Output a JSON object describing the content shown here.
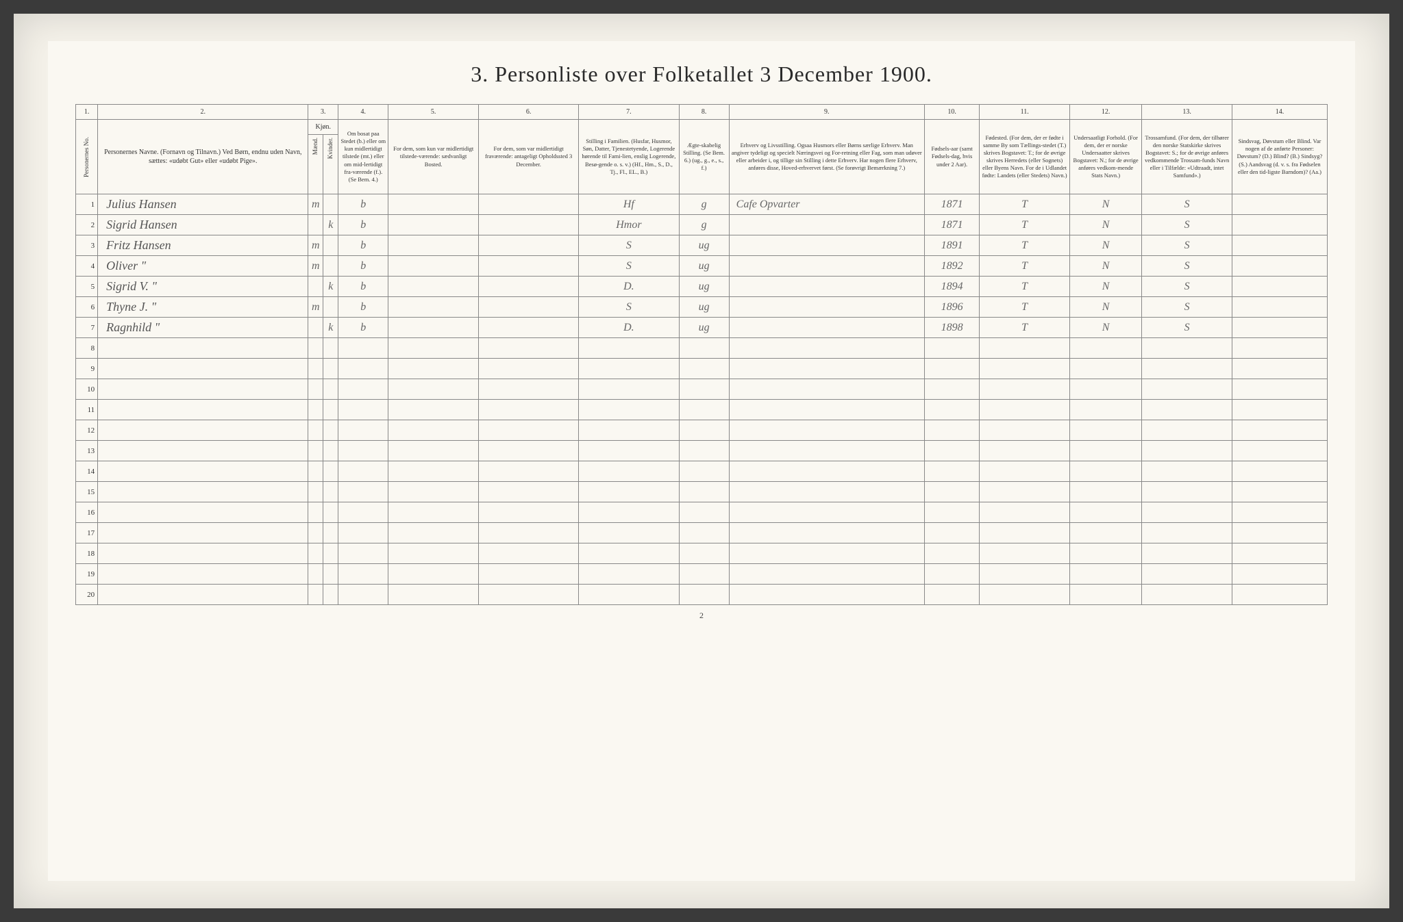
{
  "doc": {
    "title": "3. Personliste over Folketallet 3 December 1900.",
    "footer_page": "2",
    "background": "#faf8f2",
    "border_color": "#888",
    "text_color": "#333",
    "cursive_color": "#666"
  },
  "columns": {
    "numbers": [
      "1.",
      "2.",
      "3.",
      "4.",
      "5.",
      "6.",
      "7.",
      "8.",
      "9.",
      "10.",
      "11.",
      "12.",
      "13.",
      "14."
    ],
    "headers": {
      "c1": "Personernes No.",
      "c2": "Personernes Navne.\n(Fornavn og Tilnavn.)\nVed Børn, endnu uden Navn, sættes: «udøbt Gut» eller «udøbt Pige».",
      "c3": "Kjøn.",
      "c3a": "Mænd.",
      "c3b": "Kvinder.",
      "c4": "Om bosat paa Stedet (b.) eller om kun midlertidigt tilstede (mt.) eller om mid-lertidigt fra-værende (f.).\n(Se Bem. 4.)",
      "c5": "For dem, som kun var midlertidigt tilstede-værende:\nsædvanligt Bosted.",
      "c6": "For dem, som var midlertidigt fraværende:\nantageligt Opholdssted 3 December.",
      "c7": "Stilling i Familien.\n(Husfar, Husmor, Søn, Datter, Tjenestetyende, Logerende hørende til Fami-lien, enslig Logerende, Besø-gende o. s. v.)\n(Hf., Hm., S., D., Tj., Fl., EL., B.)",
      "c8": "Ægte-skabelig Stilling.\n(Se Bem. 6.)\n(ug., g., e., s., f.)",
      "c9": "Erhverv og Livsstilling.\nOgsaa Husmors eller Børns særlige Erhverv. Man angiver tydeligt og specielt Næringsvei og For-retning eller Fag, som man udøver eller arbeider i, og tillige sin Stilling i dette Erhverv.\nHar nogen flere Erhverv, anføres disse, Hoved-erhvervet først.\n(Se forøvrigt Bemærkning 7.)",
      "c10": "Fødsels-aar\n(samt Fødsels-dag, hvis under 2 Aar).",
      "c11": "Fødested.\n(For dem, der er fødte i samme By som Tællings-stedet (T.) skrives Bogstavet: T.; for de øvrige skrives Herredets (eller Sognets) eller Byens Navn.\nFor de i Udlandet fødte: Landets (eller Stedets) Navn.)",
      "c12": "Undersaatligt Forhold.\n(For dem, der er norske Undersaatter skrives Bogstavet: N.; for de øvrige anføres vedkom-mende Stats Navn.)",
      "c13": "Trossamfund.\n(For dem, der tilhører den norske Statskirke skrives Bogstavet: S.; for de øvrige anføres vedkommende Trossam-funds Navn eller i Tilfælde: «Udtraadt, intet Samfund».)",
      "c14": "Sindsvag, Døvstum eller Blind.\nVar nogen af de anførte Personer: Døvstum? (D.) Blind? (B.) Sindsyg? (S.) Aandsvag (d. v. s. fra Fødselen eller den tid-ligste Barndom)? (Aa.)"
    }
  },
  "rows": [
    {
      "num": "1",
      "name": "Julius Hansen",
      "m": "m",
      "k": "",
      "bos": "b",
      "c5": "",
      "c6": "",
      "fam": "Hf",
      "egte": "g",
      "erhverv": "Cafe Opvarter",
      "aar": "1871",
      "fsted": "T",
      "und": "N",
      "tro": "S",
      "c14": ""
    },
    {
      "num": "2",
      "name": "Sigrid Hansen",
      "m": "",
      "k": "k",
      "bos": "b",
      "c5": "",
      "c6": "",
      "fam": "Hmor",
      "egte": "g",
      "erhverv": "",
      "aar": "1871",
      "fsted": "T",
      "und": "N",
      "tro": "S",
      "c14": ""
    },
    {
      "num": "3",
      "name": "Fritz Hansen",
      "m": "m",
      "k": "",
      "bos": "b",
      "c5": "",
      "c6": "",
      "fam": "S",
      "egte": "ug",
      "erhverv": "",
      "aar": "1891",
      "fsted": "T",
      "und": "N",
      "tro": "S",
      "c14": ""
    },
    {
      "num": "4",
      "name": "Oliver   \"",
      "m": "m",
      "k": "",
      "bos": "b",
      "c5": "",
      "c6": "",
      "fam": "S",
      "egte": "ug",
      "erhverv": "",
      "aar": "1892",
      "fsted": "T",
      "und": "N",
      "tro": "S",
      "c14": ""
    },
    {
      "num": "5",
      "name": "Sigrid V.  \"",
      "m": "",
      "k": "k",
      "bos": "b",
      "c5": "",
      "c6": "",
      "fam": "D.",
      "egte": "ug",
      "erhverv": "",
      "aar": "1894",
      "fsted": "T",
      "und": "N",
      "tro": "S",
      "c14": ""
    },
    {
      "num": "6",
      "name": "Thyne J.  \"",
      "m": "m",
      "k": "",
      "bos": "b",
      "c5": "",
      "c6": "",
      "fam": "S",
      "egte": "ug",
      "erhverv": "",
      "aar": "1896",
      "fsted": "T",
      "und": "N",
      "tro": "S",
      "c14": ""
    },
    {
      "num": "7",
      "name": "Ragnhild  \"",
      "m": "",
      "k": "k",
      "bos": "b",
      "c5": "",
      "c6": "",
      "fam": "D.",
      "egte": "ug",
      "erhverv": "",
      "aar": "1898",
      "fsted": "T",
      "und": "N",
      "tro": "S",
      "c14": ""
    },
    {
      "num": "8",
      "name": "",
      "m": "",
      "k": "",
      "bos": "",
      "c5": "",
      "c6": "",
      "fam": "",
      "egte": "",
      "erhverv": "",
      "aar": "",
      "fsted": "",
      "und": "",
      "tro": "",
      "c14": ""
    },
    {
      "num": "9",
      "name": "",
      "m": "",
      "k": "",
      "bos": "",
      "c5": "",
      "c6": "",
      "fam": "",
      "egte": "",
      "erhverv": "",
      "aar": "",
      "fsted": "",
      "und": "",
      "tro": "",
      "c14": ""
    },
    {
      "num": "10",
      "name": "",
      "m": "",
      "k": "",
      "bos": "",
      "c5": "",
      "c6": "",
      "fam": "",
      "egte": "",
      "erhverv": "",
      "aar": "",
      "fsted": "",
      "und": "",
      "tro": "",
      "c14": ""
    },
    {
      "num": "11",
      "name": "",
      "m": "",
      "k": "",
      "bos": "",
      "c5": "",
      "c6": "",
      "fam": "",
      "egte": "",
      "erhverv": "",
      "aar": "",
      "fsted": "",
      "und": "",
      "tro": "",
      "c14": ""
    },
    {
      "num": "12",
      "name": "",
      "m": "",
      "k": "",
      "bos": "",
      "c5": "",
      "c6": "",
      "fam": "",
      "egte": "",
      "erhverv": "",
      "aar": "",
      "fsted": "",
      "und": "",
      "tro": "",
      "c14": ""
    },
    {
      "num": "13",
      "name": "",
      "m": "",
      "k": "",
      "bos": "",
      "c5": "",
      "c6": "",
      "fam": "",
      "egte": "",
      "erhverv": "",
      "aar": "",
      "fsted": "",
      "und": "",
      "tro": "",
      "c14": ""
    },
    {
      "num": "14",
      "name": "",
      "m": "",
      "k": "",
      "bos": "",
      "c5": "",
      "c6": "",
      "fam": "",
      "egte": "",
      "erhverv": "",
      "aar": "",
      "fsted": "",
      "und": "",
      "tro": "",
      "c14": ""
    },
    {
      "num": "15",
      "name": "",
      "m": "",
      "k": "",
      "bos": "",
      "c5": "",
      "c6": "",
      "fam": "",
      "egte": "",
      "erhverv": "",
      "aar": "",
      "fsted": "",
      "und": "",
      "tro": "",
      "c14": ""
    },
    {
      "num": "16",
      "name": "",
      "m": "",
      "k": "",
      "bos": "",
      "c5": "",
      "c6": "",
      "fam": "",
      "egte": "",
      "erhverv": "",
      "aar": "",
      "fsted": "",
      "und": "",
      "tro": "",
      "c14": ""
    },
    {
      "num": "17",
      "name": "",
      "m": "",
      "k": "",
      "bos": "",
      "c5": "",
      "c6": "",
      "fam": "",
      "egte": "",
      "erhverv": "",
      "aar": "",
      "fsted": "",
      "und": "",
      "tro": "",
      "c14": ""
    },
    {
      "num": "18",
      "name": "",
      "m": "",
      "k": "",
      "bos": "",
      "c5": "",
      "c6": "",
      "fam": "",
      "egte": "",
      "erhverv": "",
      "aar": "",
      "fsted": "",
      "und": "",
      "tro": "",
      "c14": ""
    },
    {
      "num": "19",
      "name": "",
      "m": "",
      "k": "",
      "bos": "",
      "c5": "",
      "c6": "",
      "fam": "",
      "egte": "",
      "erhverv": "",
      "aar": "",
      "fsted": "",
      "und": "",
      "tro": "",
      "c14": ""
    },
    {
      "num": "20",
      "name": "",
      "m": "",
      "k": "",
      "bos": "",
      "c5": "",
      "c6": "",
      "fam": "",
      "egte": "",
      "erhverv": "",
      "aar": "",
      "fsted": "",
      "und": "",
      "tro": "",
      "c14": ""
    }
  ]
}
